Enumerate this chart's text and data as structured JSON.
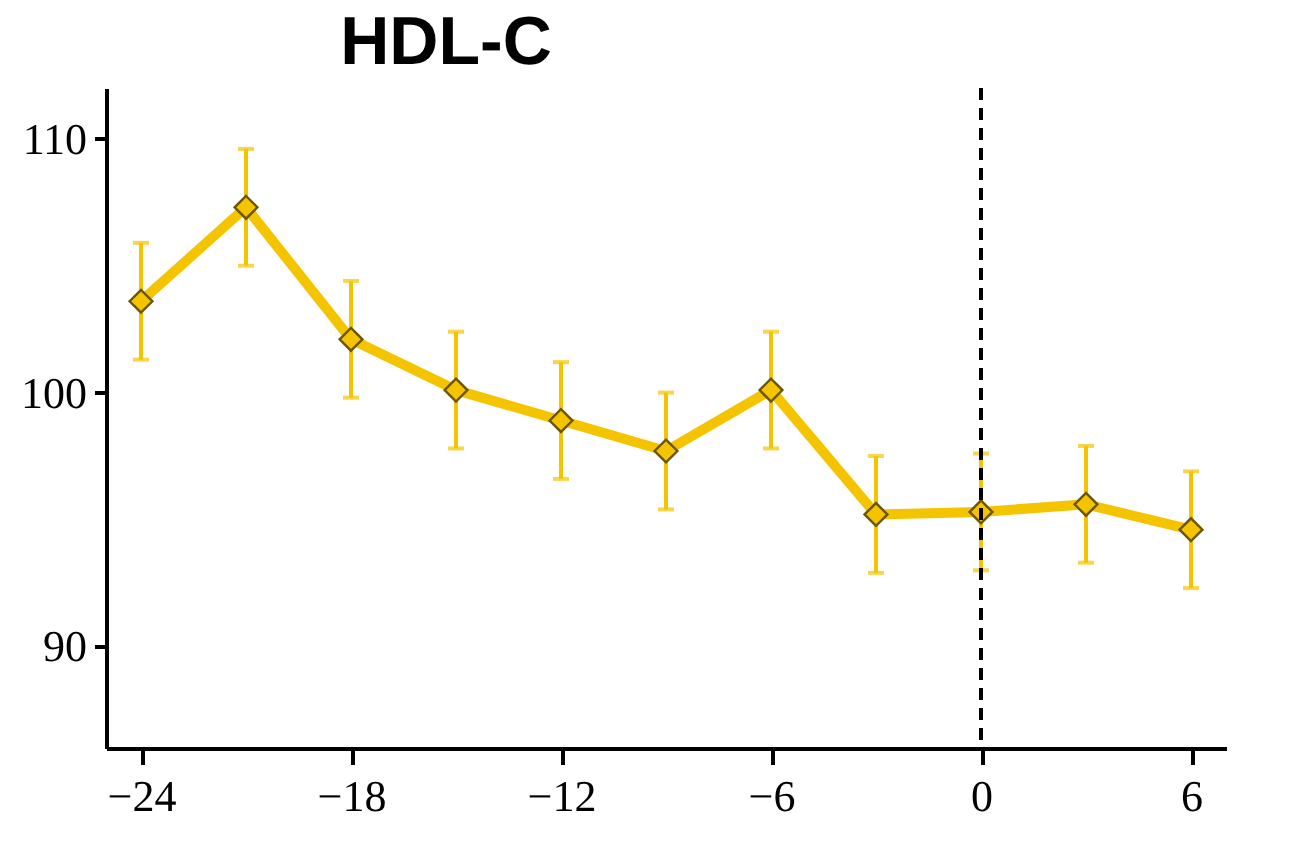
{
  "chart_data": {
    "type": "line",
    "title": "HDL-C",
    "x": [
      -24,
      -21,
      -18,
      -15,
      -12,
      -9,
      -6,
      -3,
      0,
      3,
      6
    ],
    "series": [
      {
        "color": "#f5c400",
        "values": [
          103.6,
          107.3,
          102.1,
          100.1,
          98.9,
          97.7,
          100.1,
          95.2,
          95.3,
          95.6,
          94.6
        ],
        "errors": [
          2.3,
          2.3,
          2.3,
          2.3,
          2.3,
          2.3,
          2.3,
          2.3,
          2.3,
          2.3,
          2.3
        ]
      }
    ],
    "xlim": [
      -25,
      7
    ],
    "xticks": [
      -24,
      -18,
      -12,
      -6,
      0,
      6
    ],
    "ylim": [
      86,
      112
    ],
    "yticks": [
      90,
      100,
      110
    ],
    "ref_lines": [
      {
        "axis": "x",
        "value": 0,
        "color": "#000000",
        "line_style": "dashed"
      }
    ],
    "marker": "diamond",
    "line_style": "solid",
    "grid": false
  }
}
